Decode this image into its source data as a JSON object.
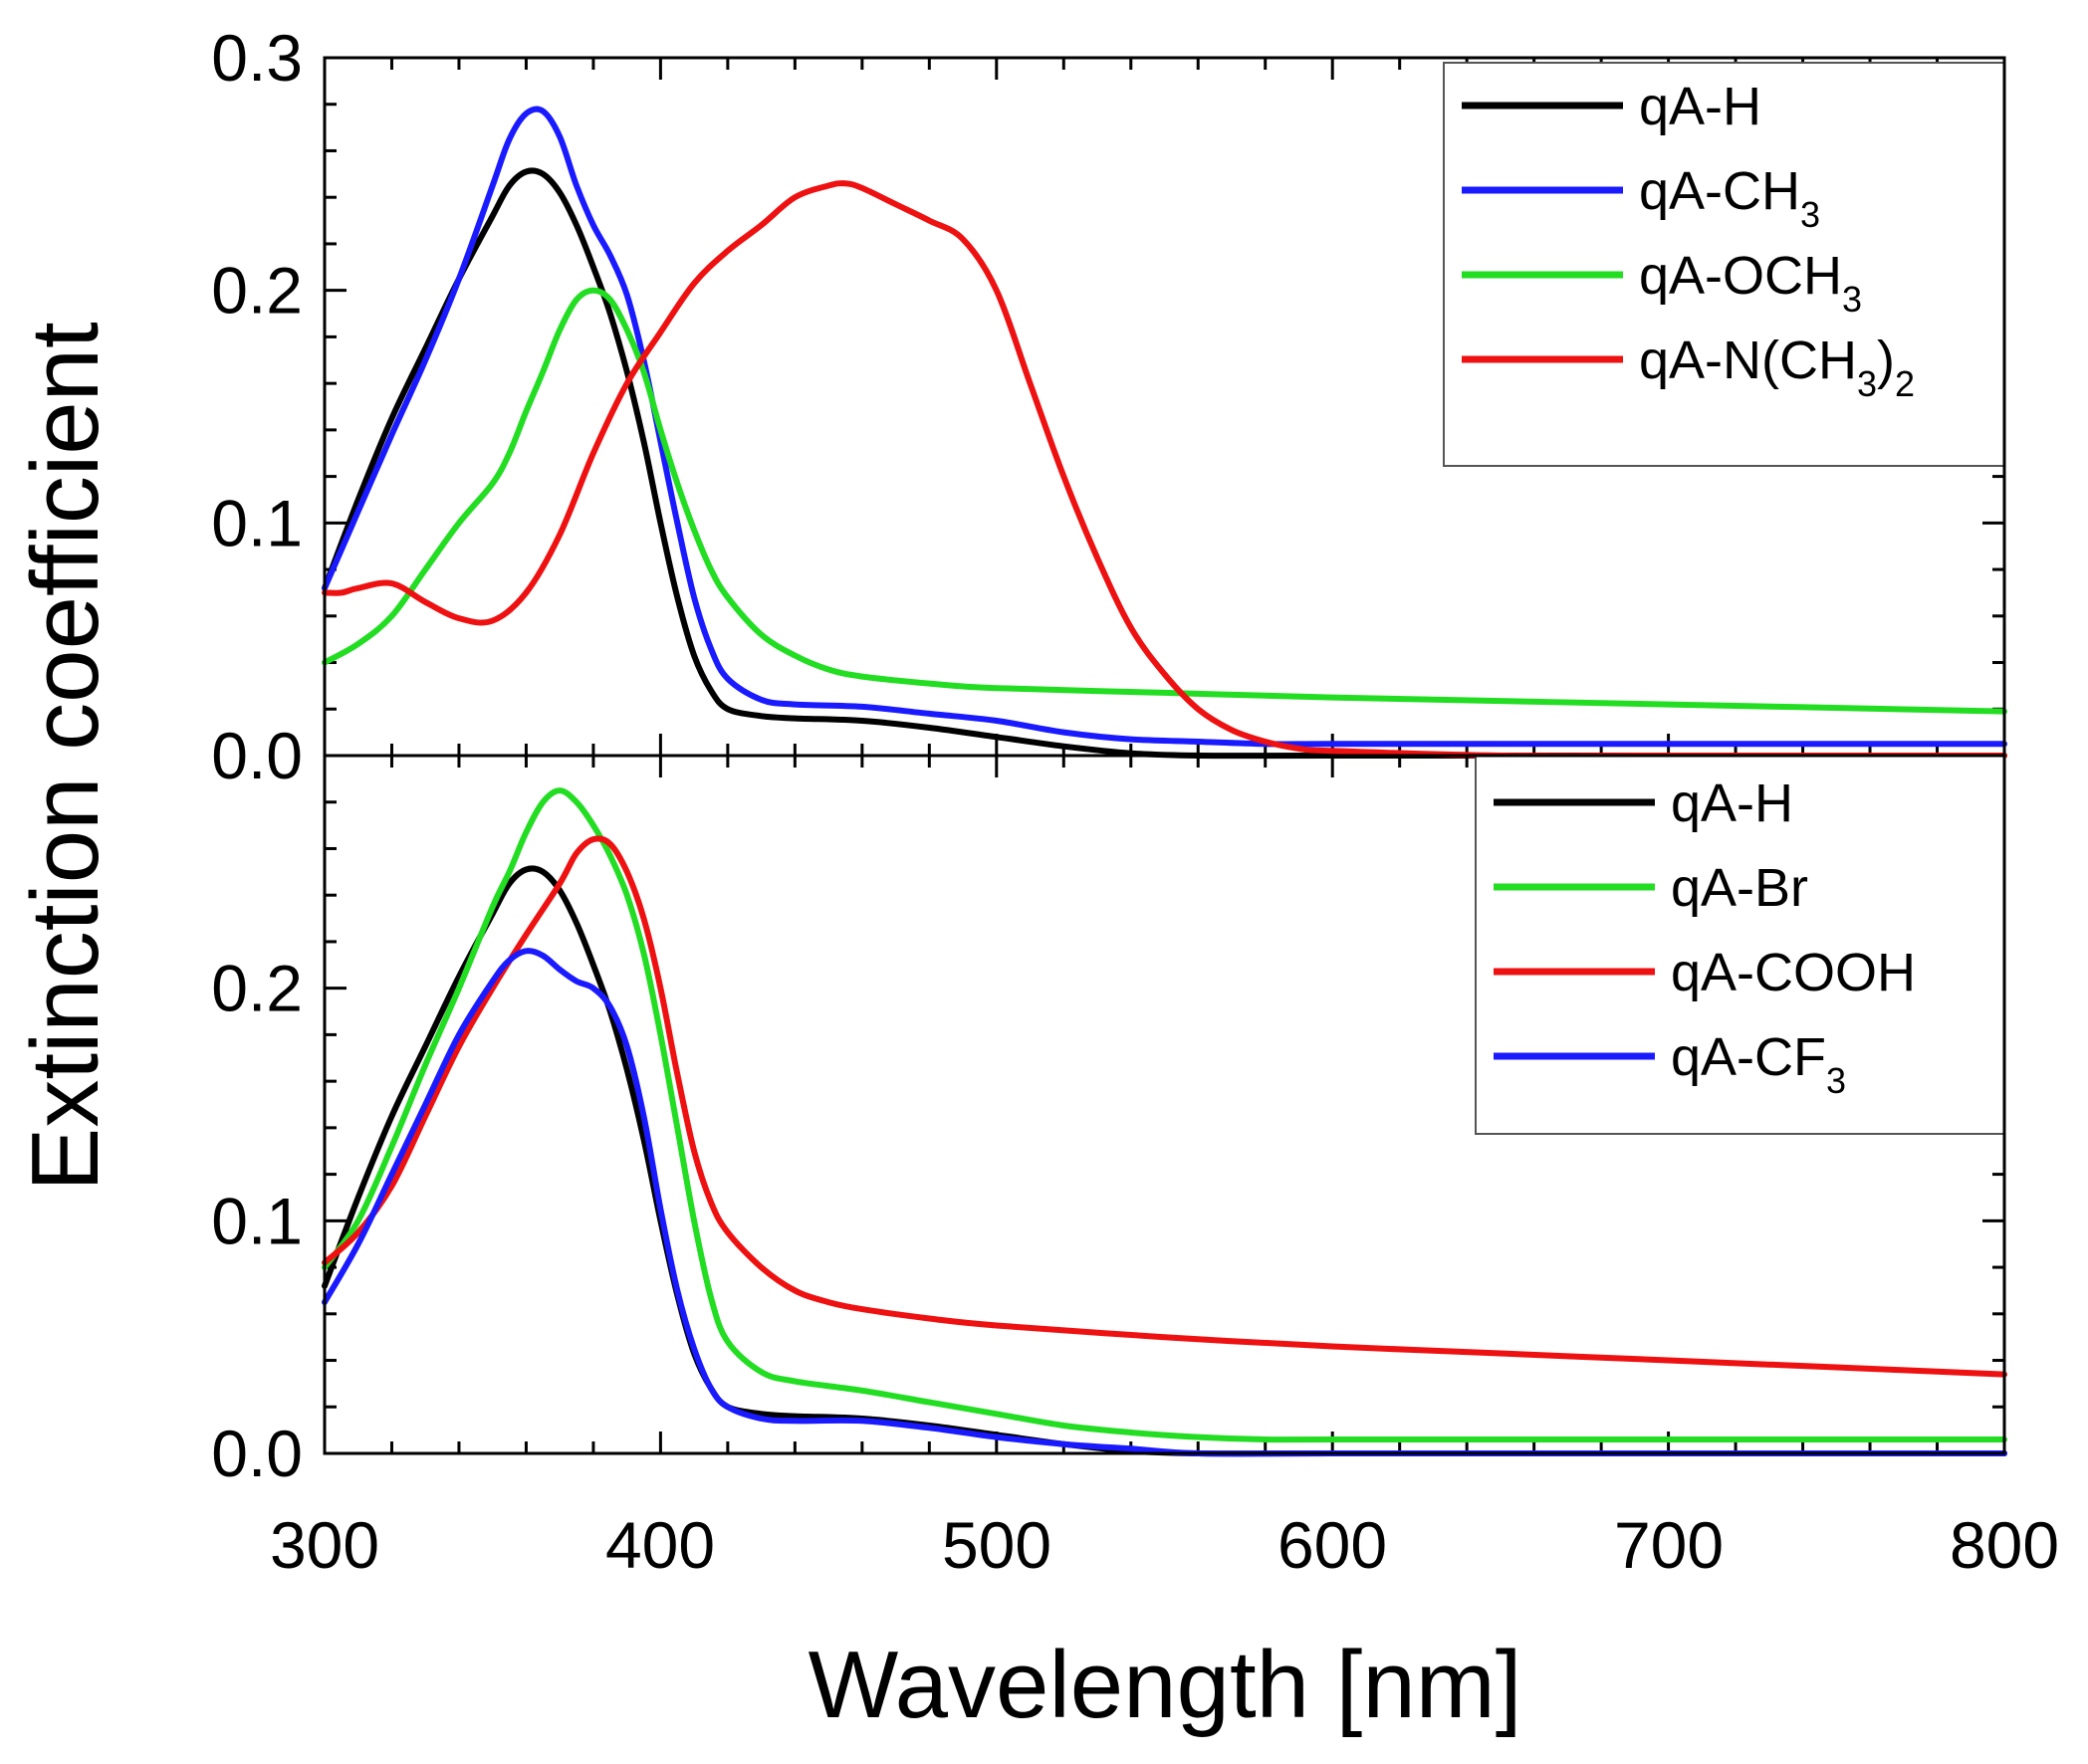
{
  "chart_data": [
    {
      "type": "line",
      "panel": "top",
      "xlim": [
        300,
        800
      ],
      "ylim": [
        0,
        0.3
      ],
      "xticks": [
        300,
        400,
        500,
        600,
        700,
        800
      ],
      "yticks": [
        0.0,
        0.1,
        0.2,
        0.3
      ],
      "ytick_labels": [
        "0.0",
        "0.1",
        "0.2",
        "0.3"
      ],
      "grid": false,
      "legend_position": "top-right",
      "series": [
        {
          "name": "qA-H",
          "label_main": "qA-H",
          "label_sub": "",
          "label_tail": "",
          "label_sub2": "",
          "color": "#000000",
          "x": [
            300,
            310,
            320,
            330,
            340,
            350,
            355,
            360,
            365,
            370,
            375,
            380,
            385,
            390,
            395,
            400,
            405,
            410,
            415,
            420,
            430,
            440,
            460,
            480,
            500,
            520,
            540,
            560,
            600,
            700,
            800
          ],
          "y": [
            0.072,
            0.11,
            0.145,
            0.175,
            0.205,
            0.232,
            0.245,
            0.251,
            0.25,
            0.242,
            0.228,
            0.21,
            0.19,
            0.165,
            0.135,
            0.1,
            0.068,
            0.043,
            0.028,
            0.02,
            0.017,
            0.016,
            0.015,
            0.012,
            0.008,
            0.004,
            0.001,
            0.0,
            0.0,
            0.0,
            0.0
          ]
        },
        {
          "name": "qA-CH3",
          "label_main": "qA-CH",
          "label_sub": "3",
          "label_tail": "",
          "label_sub2": "",
          "color": "#1a1aff",
          "x": [
            300,
            310,
            320,
            330,
            340,
            350,
            355,
            360,
            365,
            370,
            375,
            380,
            385,
            390,
            395,
            400,
            405,
            410,
            415,
            420,
            430,
            440,
            460,
            480,
            500,
            520,
            540,
            560,
            580,
            600,
            650,
            700,
            800
          ],
          "y": [
            0.072,
            0.105,
            0.138,
            0.17,
            0.205,
            0.245,
            0.265,
            0.276,
            0.277,
            0.266,
            0.245,
            0.228,
            0.215,
            0.198,
            0.17,
            0.135,
            0.1,
            0.068,
            0.046,
            0.033,
            0.024,
            0.022,
            0.021,
            0.018,
            0.015,
            0.01,
            0.007,
            0.006,
            0.005,
            0.005,
            0.005,
            0.005,
            0.005
          ]
        },
        {
          "name": "qA-OCH3",
          "label_main": "qA-OCH",
          "label_sub": "3",
          "label_tail": "",
          "label_sub2": "",
          "color": "#22dd22",
          "x": [
            300,
            310,
            320,
            330,
            340,
            350,
            355,
            360,
            365,
            370,
            375,
            380,
            385,
            390,
            395,
            400,
            405,
            410,
            415,
            420,
            430,
            440,
            450,
            460,
            480,
            500,
            550,
            600,
            700,
            800
          ],
          "y": [
            0.04,
            0.048,
            0.06,
            0.08,
            0.1,
            0.117,
            0.13,
            0.148,
            0.165,
            0.183,
            0.196,
            0.2,
            0.196,
            0.183,
            0.165,
            0.14,
            0.117,
            0.097,
            0.08,
            0.068,
            0.052,
            0.043,
            0.037,
            0.034,
            0.031,
            0.029,
            0.027,
            0.025,
            0.022,
            0.019
          ]
        },
        {
          "name": "qA-N(CH3)2",
          "label_main": "qA-N(CH",
          "label_sub": "3",
          "label_tail": ")",
          "label_sub2": "2",
          "color": "#ee1111",
          "x": [
            300,
            305,
            310,
            320,
            330,
            340,
            350,
            360,
            370,
            380,
            390,
            400,
            410,
            420,
            430,
            440,
            450,
            455,
            460,
            470,
            480,
            490,
            500,
            510,
            520,
            530,
            540,
            550,
            560,
            570,
            580,
            590,
            600,
            650,
            700,
            800
          ],
          "y": [
            0.07,
            0.07,
            0.072,
            0.074,
            0.066,
            0.059,
            0.058,
            0.07,
            0.095,
            0.13,
            0.16,
            0.182,
            0.203,
            0.217,
            0.228,
            0.24,
            0.245,
            0.246,
            0.244,
            0.237,
            0.23,
            0.222,
            0.2,
            0.16,
            0.12,
            0.085,
            0.055,
            0.035,
            0.02,
            0.011,
            0.006,
            0.003,
            0.002,
            0.0,
            0.0,
            0.0
          ]
        }
      ]
    },
    {
      "type": "line",
      "panel": "bottom",
      "xlim": [
        300,
        800
      ],
      "ylim": [
        0,
        0.3
      ],
      "xticks": [
        300,
        400,
        500,
        600,
        700,
        800
      ],
      "yticks": [
        0.0,
        0.1,
        0.2
      ],
      "ytick_labels": [
        "0.0",
        "0.1",
        "0.2"
      ],
      "grid": false,
      "legend_position": "top-right",
      "series": [
        {
          "name": "qA-H",
          "label_main": "qA-H",
          "label_sub": "",
          "label_tail": "",
          "label_sub2": "",
          "color": "#000000",
          "x": [
            300,
            310,
            320,
            330,
            340,
            350,
            355,
            360,
            365,
            370,
            375,
            380,
            385,
            390,
            395,
            400,
            405,
            410,
            415,
            420,
            430,
            440,
            460,
            480,
            500,
            520,
            540,
            560,
            600,
            700,
            800
          ],
          "y": [
            0.072,
            0.11,
            0.145,
            0.175,
            0.205,
            0.232,
            0.245,
            0.251,
            0.25,
            0.242,
            0.228,
            0.21,
            0.19,
            0.165,
            0.135,
            0.1,
            0.068,
            0.043,
            0.028,
            0.02,
            0.017,
            0.016,
            0.015,
            0.012,
            0.008,
            0.004,
            0.001,
            0.0,
            0.0,
            0.0,
            0.0
          ]
        },
        {
          "name": "qA-Br",
          "label_main": "qA-Br",
          "label_sub": "",
          "label_tail": "",
          "label_sub2": "",
          "color": "#22dd22",
          "x": [
            300,
            310,
            320,
            330,
            340,
            350,
            355,
            360,
            365,
            370,
            375,
            380,
            385,
            390,
            395,
            400,
            405,
            410,
            415,
            420,
            430,
            440,
            460,
            480,
            500,
            520,
            540,
            560,
            580,
            600,
            700,
            800
          ],
          "y": [
            0.08,
            0.1,
            0.132,
            0.167,
            0.2,
            0.235,
            0.25,
            0.267,
            0.28,
            0.285,
            0.28,
            0.27,
            0.257,
            0.24,
            0.215,
            0.18,
            0.14,
            0.1,
            0.067,
            0.048,
            0.035,
            0.031,
            0.027,
            0.022,
            0.017,
            0.012,
            0.009,
            0.007,
            0.006,
            0.006,
            0.006,
            0.006
          ]
        },
        {
          "name": "qA-COOH",
          "label_main": "qA-COOH",
          "label_sub": "",
          "label_tail": "",
          "label_sub2": "",
          "color": "#ee1111",
          "x": [
            300,
            310,
            320,
            330,
            340,
            350,
            360,
            370,
            375,
            380,
            385,
            390,
            395,
            400,
            405,
            410,
            415,
            420,
            430,
            440,
            450,
            460,
            480,
            500,
            550,
            600,
            650,
            700,
            750,
            800
          ],
          "y": [
            0.082,
            0.095,
            0.115,
            0.145,
            0.175,
            0.2,
            0.223,
            0.245,
            0.258,
            0.264,
            0.262,
            0.25,
            0.23,
            0.2,
            0.163,
            0.13,
            0.108,
            0.095,
            0.08,
            0.07,
            0.065,
            0.062,
            0.058,
            0.055,
            0.05,
            0.046,
            0.043,
            0.04,
            0.037,
            0.034
          ]
        },
        {
          "name": "qA-CF3",
          "label_main": "qA-CF",
          "label_sub": "3",
          "label_tail": "",
          "label_sub2": "",
          "color": "#1a1aff",
          "x": [
            300,
            310,
            320,
            330,
            340,
            350,
            355,
            360,
            365,
            370,
            375,
            380,
            385,
            390,
            395,
            400,
            405,
            410,
            415,
            420,
            430,
            440,
            460,
            480,
            500,
            520,
            540,
            560,
            600,
            700,
            800
          ],
          "y": [
            0.065,
            0.09,
            0.12,
            0.15,
            0.18,
            0.203,
            0.212,
            0.216,
            0.214,
            0.208,
            0.203,
            0.2,
            0.192,
            0.175,
            0.145,
            0.105,
            0.07,
            0.045,
            0.028,
            0.02,
            0.015,
            0.014,
            0.014,
            0.011,
            0.007,
            0.004,
            0.002,
            0.0,
            0.0,
            0.0,
            0.0
          ]
        }
      ]
    }
  ],
  "axes": {
    "xlabel": "Wavelength [nm]",
    "ylabel": "Extinction coefficient",
    "xtick_labels": [
      "300",
      "400",
      "500",
      "600",
      "700",
      "800"
    ]
  }
}
